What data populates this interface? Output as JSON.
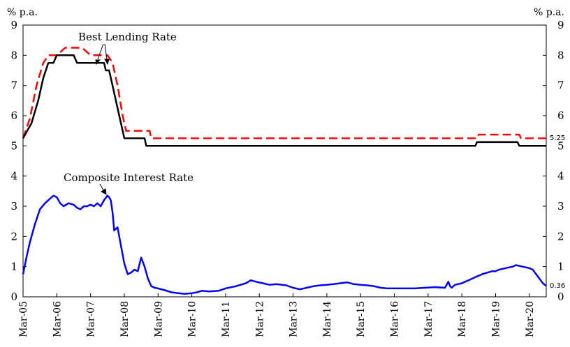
{
  "chart_data": {
    "type": "line",
    "ylim": [
      0,
      9
    ],
    "y_ticks": [
      "0",
      "1",
      "2",
      "3",
      "4",
      "5",
      "6",
      "7",
      "8",
      "9"
    ],
    "y_unit_left": "% p.a.",
    "y_unit_right": "% p.a.",
    "x_ticks": [
      "Mar-05",
      "Mar-06",
      "Mar-07",
      "Mar-08",
      "Mar-09",
      "Mar-10",
      "Mar-11",
      "Mar-12",
      "Mar-13",
      "Mar-14",
      "Mar-15",
      "Mar-16",
      "Mar-17",
      "Mar-18",
      "Mar-19",
      "Mar-20"
    ],
    "x_tick_values": [
      2005,
      2006,
      2007,
      2008,
      2009,
      2010,
      2011,
      2012,
      2013,
      2014,
      2015,
      2016,
      2017,
      2018,
      2019,
      2020
    ],
    "xlim": [
      2005.0,
      2020.5
    ],
    "grid": false,
    "annotations": [
      {
        "text": "Best Lending Rate"
      },
      {
        "text": "Composite Interest Rate"
      }
    ],
    "end_labels": [
      "5.25",
      "0.36"
    ],
    "series": [
      {
        "color": "#ff0000",
        "dash": true,
        "x": [
          2005.0,
          2005.2,
          2005.4,
          2005.6,
          2005.75,
          2006.0,
          2006.25,
          2006.5,
          2006.75,
          2007.0,
          2007.25,
          2007.5,
          2007.65,
          2007.8,
          2007.95,
          2008.05,
          2008.2,
          2008.55,
          2008.65,
          2008.75,
          2008.8,
          2009.0,
          2018.45,
          2018.5,
          2019.7,
          2019.75,
          2020.5
        ],
        "y": [
          5.25,
          5.9,
          7.0,
          7.75,
          8.0,
          8.0,
          8.25,
          8.25,
          8.25,
          8.0,
          8.0,
          8.0,
          7.75,
          7.0,
          6.0,
          5.5,
          5.5,
          5.5,
          5.5,
          5.5,
          5.25,
          5.25,
          5.25,
          5.375,
          5.375,
          5.25,
          5.25
        ]
      },
      {
        "color": "#000000",
        "dash": false,
        "x": [
          2005.0,
          2005.25,
          2005.45,
          2005.6,
          2005.75,
          2005.9,
          2006.0,
          2006.1,
          2006.3,
          2006.5,
          2006.6,
          2006.8,
          2007.0,
          2007.2,
          2007.4,
          2007.45,
          2007.55,
          2007.65,
          2007.8,
          2007.95,
          2008.0,
          2008.5,
          2008.6,
          2008.65,
          2018.4,
          2018.45,
          2019.65,
          2019.7,
          2020.5
        ],
        "y": [
          5.25,
          5.75,
          6.5,
          7.25,
          7.75,
          7.75,
          8.0,
          8.0,
          8.0,
          8.0,
          7.75,
          7.75,
          7.75,
          7.75,
          7.75,
          7.5,
          7.5,
          7.0,
          6.25,
          5.5,
          5.25,
          5.25,
          5.25,
          5.0,
          5.0,
          5.125,
          5.125,
          5.0,
          5.0
        ]
      },
      {
        "color": "#0000ff",
        "dash": false,
        "x": [
          2005.0,
          2005.1,
          2005.2,
          2005.35,
          2005.5,
          2005.65,
          2005.75,
          2005.9,
          2006.0,
          2006.05,
          2006.1,
          2006.2,
          2006.35,
          2006.5,
          2006.6,
          2006.7,
          2006.8,
          2006.9,
          2007.0,
          2007.1,
          2007.2,
          2007.3,
          2007.4,
          2007.5,
          2007.55,
          2007.6,
          2007.65,
          2007.7,
          2007.8,
          2007.9,
          2008.0,
          2008.1,
          2008.2,
          2008.3,
          2008.4,
          2008.5,
          2008.6,
          2008.65,
          2008.7,
          2008.8,
          2008.9,
          2009.0,
          2009.2,
          2009.4,
          2009.6,
          2009.8,
          2010.0,
          2010.15,
          2010.3,
          2010.5,
          2010.8,
          2011.0,
          2011.3,
          2011.6,
          2011.75,
          2011.9,
          2012.1,
          2012.3,
          2012.5,
          2012.8,
          2013.0,
          2013.2,
          2013.4,
          2013.6,
          2013.8,
          2014.0,
          2014.2,
          2014.4,
          2014.6,
          2014.8,
          2015.0,
          2015.2,
          2015.4,
          2015.6,
          2015.8,
          2016.0,
          2016.3,
          2016.6,
          2016.9,
          2017.2,
          2017.5,
          2017.6,
          2017.65,
          2017.7,
          2017.8,
          2018.0,
          2018.1,
          2018.2,
          2018.3,
          2018.4,
          2018.5,
          2018.6,
          2018.75,
          2018.9,
          2019.0,
          2019.1,
          2019.3,
          2019.5,
          2019.6,
          2019.8,
          2020.0,
          2020.1,
          2020.2,
          2020.3,
          2020.4,
          2020.5
        ],
        "y": [
          0.75,
          1.3,
          1.8,
          2.4,
          2.9,
          3.1,
          3.2,
          3.35,
          3.3,
          3.2,
          3.1,
          3.0,
          3.1,
          3.05,
          2.95,
          2.9,
          3.0,
          3.0,
          3.05,
          3.0,
          3.1,
          3.0,
          3.2,
          3.35,
          3.3,
          3.2,
          2.8,
          2.2,
          2.3,
          1.7,
          1.1,
          0.75,
          0.8,
          0.9,
          0.85,
          1.3,
          1.0,
          0.8,
          0.6,
          0.35,
          0.3,
          0.28,
          0.22,
          0.15,
          0.12,
          0.1,
          0.12,
          0.15,
          0.2,
          0.18,
          0.2,
          0.28,
          0.35,
          0.45,
          0.55,
          0.5,
          0.45,
          0.4,
          0.42,
          0.38,
          0.3,
          0.25,
          0.3,
          0.35,
          0.38,
          0.4,
          0.42,
          0.45,
          0.48,
          0.42,
          0.4,
          0.38,
          0.35,
          0.3,
          0.28,
          0.28,
          0.28,
          0.28,
          0.3,
          0.32,
          0.3,
          0.5,
          0.35,
          0.3,
          0.4,
          0.45,
          0.5,
          0.55,
          0.6,
          0.65,
          0.7,
          0.75,
          0.8,
          0.85,
          0.85,
          0.9,
          0.95,
          1.0,
          1.05,
          1.0,
          0.95,
          0.9,
          0.75,
          0.6,
          0.45,
          0.36
        ]
      }
    ]
  }
}
